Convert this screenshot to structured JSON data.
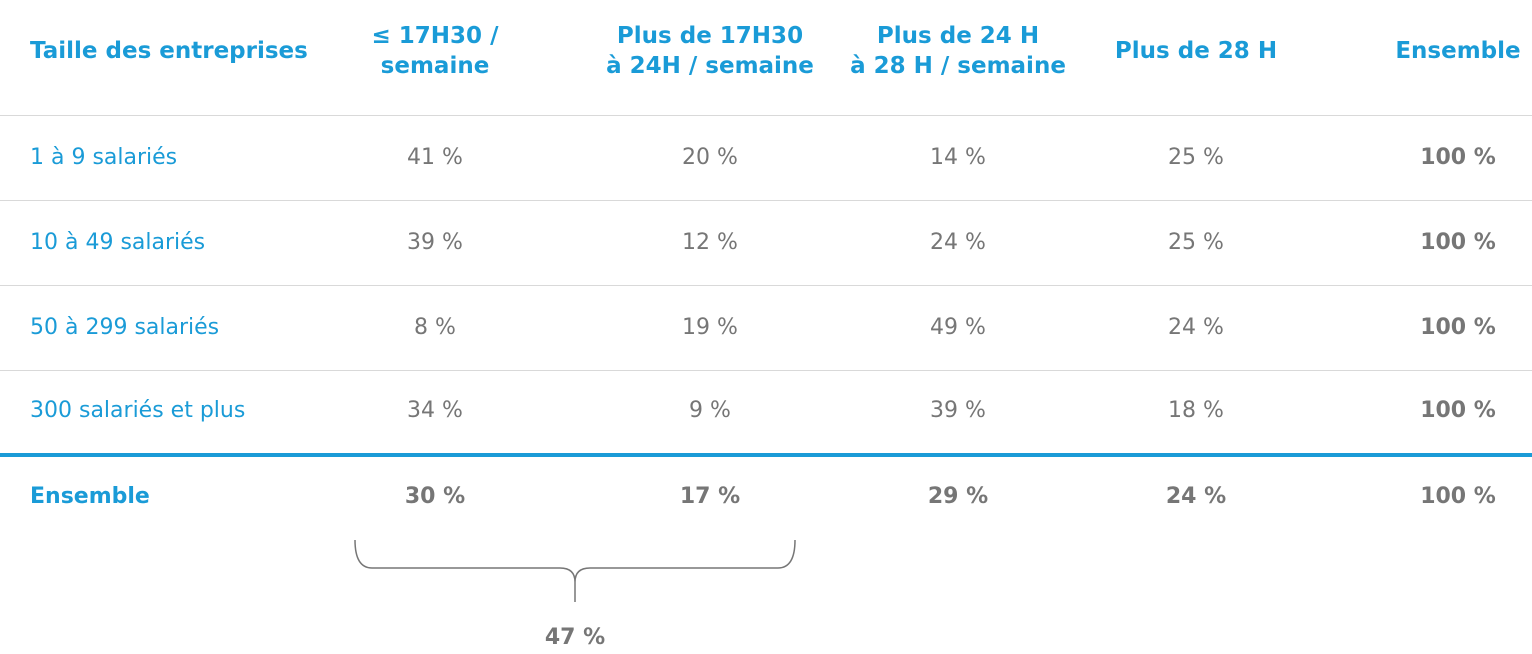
{
  "table": {
    "headers": [
      "Taille des entreprises",
      "≤ 17H30 /\nsemaine",
      "Plus de 17H30\nà 24H / semaine",
      "Plus de 24 H\nà 28 H / semaine",
      "Plus de 28 H",
      "Ensemble"
    ],
    "rows": [
      [
        "1 à 9 salariés",
        "41 %",
        "20 %",
        "14 %",
        "25 %",
        "100 %"
      ],
      [
        "10 à 49 salariés",
        "39 %",
        "12 %",
        "24 %",
        "25 %",
        "100 %"
      ],
      [
        "50 à 299 salariés",
        "8 %",
        "19 %",
        "49 %",
        "24 %",
        "100 %"
      ],
      [
        "300 salariés et plus",
        "34 %",
        "9 %",
        "39 %",
        "18 %",
        "100 %"
      ]
    ],
    "total": [
      "Ensemble",
      "30 %",
      "17 %",
      "29 %",
      "24 %",
      "100 %"
    ]
  },
  "annotation": {
    "label": "47 %"
  }
}
